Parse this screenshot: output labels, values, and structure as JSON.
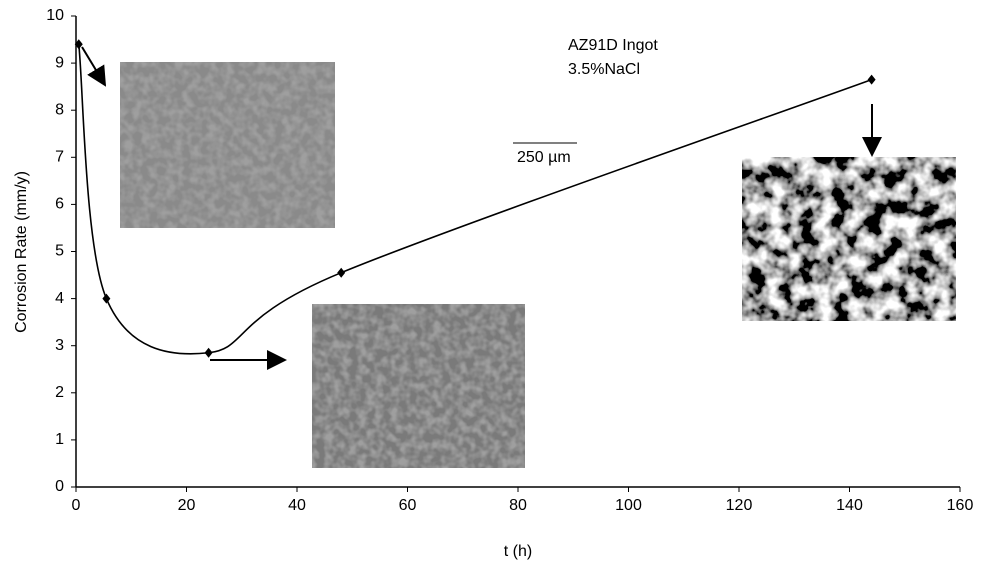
{
  "chart_data": {
    "type": "line",
    "x_label": "t (h)",
    "y_label": "Corrosion Rate (mm/y)",
    "annotations": [
      "AZ91D Ingot",
      "3.5%NaCl",
      "250 µm"
    ],
    "series": [
      {
        "name": "AZ91D Ingot",
        "color": "#000000",
        "x": [
          0.5,
          5.5,
          24,
          48,
          144
        ],
        "values": [
          9.4,
          4.0,
          2.85,
          4.55,
          8.65
        ]
      }
    ],
    "xlim": [
      0,
      160
    ],
    "xticks": [
      0,
      20,
      40,
      60,
      80,
      100,
      120,
      140,
      160
    ],
    "ylim": [
      0,
      10
    ],
    "yticks": [
      0,
      1,
      2,
      3,
      4,
      5,
      6,
      7,
      8,
      9,
      10
    ],
    "grid": false
  }
}
